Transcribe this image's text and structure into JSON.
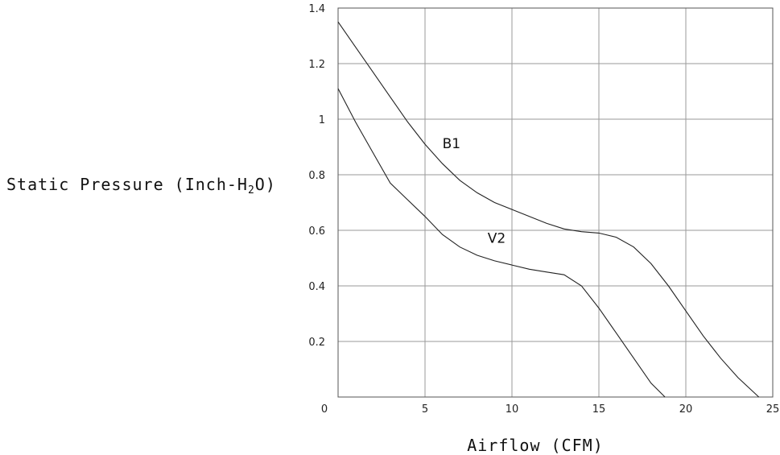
{
  "chart_data": {
    "type": "line",
    "xlabel": "Airflow (CFM)",
    "ylabel_main": "Static Pressure (Inch-H",
    "ylabel_sub": "2",
    "ylabel_end": "O)",
    "xlim": [
      0,
      25
    ],
    "ylim": [
      0,
      1.4
    ],
    "x_ticks": [
      0,
      5,
      10,
      15,
      20,
      25
    ],
    "x_tick_labels": [
      "0",
      "5",
      "10",
      "15",
      "20",
      "25"
    ],
    "y_ticks": [
      0.2,
      0.4,
      0.6,
      0.8,
      1,
      1.2,
      1.4
    ],
    "y_tick_labels": [
      "0.2",
      "0.4",
      "0.6",
      "0.8",
      "1",
      "1.2",
      "1.4"
    ],
    "grid": true,
    "series": [
      {
        "name": "B1",
        "x": [
          0,
          1,
          2,
          3,
          4,
          5,
          6,
          7,
          8,
          9,
          10,
          11,
          12,
          13,
          14,
          15,
          16,
          17,
          18,
          19,
          20,
          21,
          22,
          23,
          24.2
        ],
        "y": [
          1.35,
          1.26,
          1.17,
          1.08,
          0.99,
          0.91,
          0.84,
          0.78,
          0.735,
          0.7,
          0.675,
          0.65,
          0.625,
          0.605,
          0.595,
          0.59,
          0.575,
          0.54,
          0.48,
          0.4,
          0.31,
          0.22,
          0.14,
          0.07,
          0
        ]
      },
      {
        "name": "V2",
        "x": [
          0,
          1,
          2,
          3,
          4,
          5,
          6,
          7,
          8,
          9,
          10,
          11,
          12,
          13,
          14,
          15,
          16,
          17,
          18,
          18.8
        ],
        "y": [
          1.11,
          0.99,
          0.88,
          0.77,
          0.71,
          0.65,
          0.585,
          0.54,
          0.51,
          0.49,
          0.475,
          0.46,
          0.45,
          0.44,
          0.4,
          0.32,
          0.23,
          0.14,
          0.05,
          0
        ]
      }
    ],
    "labels": [
      {
        "text": "B1",
        "series": "B1"
      },
      {
        "text": "V2",
        "series": "V2"
      }
    ]
  }
}
